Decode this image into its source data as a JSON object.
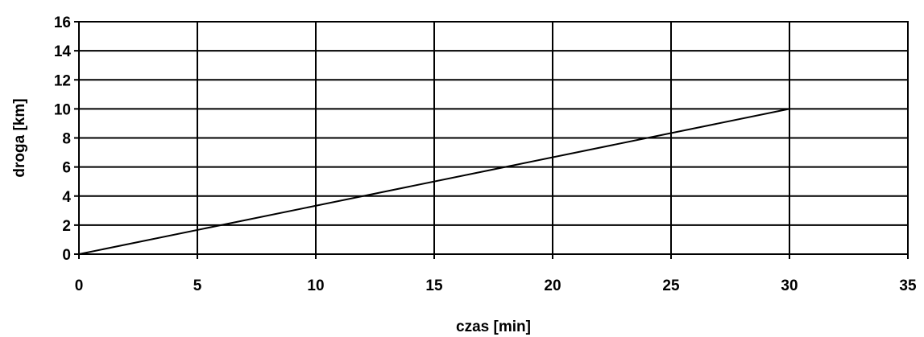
{
  "chart_data": {
    "type": "line",
    "title": "",
    "xlabel": "czas [min]",
    "ylabel": "droga [km]",
    "xlim": [
      0,
      35
    ],
    "ylim": [
      0,
      16
    ],
    "xticks": [
      0,
      5,
      10,
      15,
      20,
      25,
      30,
      35
    ],
    "yticks": [
      0,
      2,
      4,
      6,
      8,
      10,
      12,
      14,
      16
    ],
    "grid": true,
    "legend": "none",
    "series": [
      {
        "x": [
          0,
          30
        ],
        "y": [
          0,
          10
        ],
        "color": "#000000"
      }
    ]
  }
}
